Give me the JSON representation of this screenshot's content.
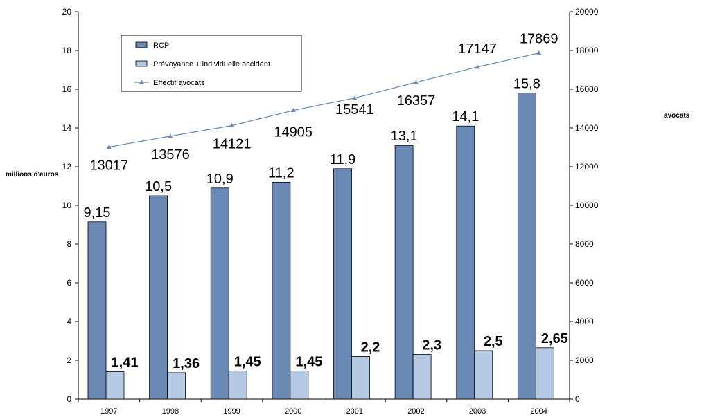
{
  "chart_data": {
    "type": "bar",
    "categories": [
      "1997",
      "1998",
      "1999",
      "2000",
      "2001",
      "2002",
      "2003",
      "2004"
    ],
    "ylabel_left": "millions d'euros",
    "ylabel_right": "avocats",
    "ylim_left": [
      0,
      20
    ],
    "ylim_right": [
      0,
      20000
    ],
    "yticks_left": [
      "0",
      "2",
      "4",
      "6",
      "8",
      "10",
      "12",
      "14",
      "16",
      "18",
      "20"
    ],
    "yticks_right": [
      "0",
      "2000",
      "4000",
      "6000",
      "8000",
      "10000",
      "12000",
      "14000",
      "16000",
      "18000",
      "20000"
    ],
    "grid": false,
    "legend_position": "top-left",
    "series": [
      {
        "name": "RCP",
        "kind": "bar",
        "axis": "left",
        "color": "#6a8ab5",
        "values": [
          9.15,
          10.5,
          10.9,
          11.2,
          11.9,
          13.1,
          14.1,
          15.8
        ],
        "labels": [
          "9,15",
          "10,5",
          "10,9",
          "11,2",
          "11,9",
          "13,1",
          "14,1",
          "15,8"
        ]
      },
      {
        "name": "Prévoyance + individuelle accident",
        "kind": "bar",
        "axis": "left",
        "color": "#b5c8e4",
        "values": [
          1.41,
          1.36,
          1.45,
          1.45,
          2.2,
          2.3,
          2.5,
          2.65
        ],
        "labels": [
          "1,41",
          "1,36",
          "1,45",
          "1,45",
          "2,2",
          "2,3",
          "2,5",
          "2,65"
        ]
      },
      {
        "name": "Effectif avocats",
        "kind": "line",
        "axis": "right",
        "color": "#6a8ab5",
        "values": [
          13017,
          13576,
          14121,
          14905,
          15541,
          16357,
          17147,
          17869
        ],
        "labels": [
          "13017",
          "13576",
          "14121",
          "14905",
          "15541",
          "16357",
          "17147",
          "17869"
        ]
      }
    ]
  }
}
